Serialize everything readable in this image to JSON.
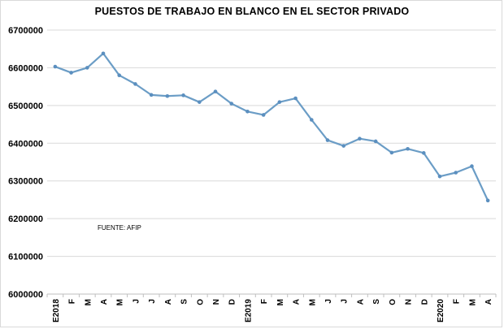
{
  "chart_data": {
    "type": "line",
    "title": "PUESTOS DE TRABAJO  EN BLANCO  EN EL SECTOR PRIVADO",
    "xlabel": "",
    "ylabel": "",
    "categories": [
      "E2018",
      "F",
      "M",
      "A",
      "M",
      "J",
      "J",
      "A",
      "S",
      "O",
      "N",
      "D",
      "E2019",
      "F",
      "M",
      "A",
      "M",
      "J",
      "J",
      "A",
      "S",
      "O",
      "N",
      "D",
      "E2020",
      "F",
      "M",
      "A"
    ],
    "series": [
      {
        "values": [
          6603000,
          6587000,
          6600000,
          6638000,
          6580000,
          6557000,
          6528000,
          6525000,
          6527000,
          6509000,
          6537000,
          6505000,
          6484000,
          6475000,
          6509000,
          6519000,
          6462000,
          6408000,
          6393000,
          6412000,
          6405000,
          6375000,
          6385000,
          6374000,
          6312000,
          6322000,
          6339000,
          6248000
        ]
      }
    ],
    "ylim": [
      6000000,
      6700000
    ],
    "yticks": [
      "6000000",
      "6100000",
      "6200000",
      "6300000",
      "6400000",
      "6500000",
      "6600000",
      "6700000"
    ],
    "grid": true,
    "annotation": "FUENTE: AFIP",
    "colors": {
      "line": "#6b9dc6",
      "marker": "#5b8fbf",
      "grid": "#d9d9d9"
    }
  }
}
